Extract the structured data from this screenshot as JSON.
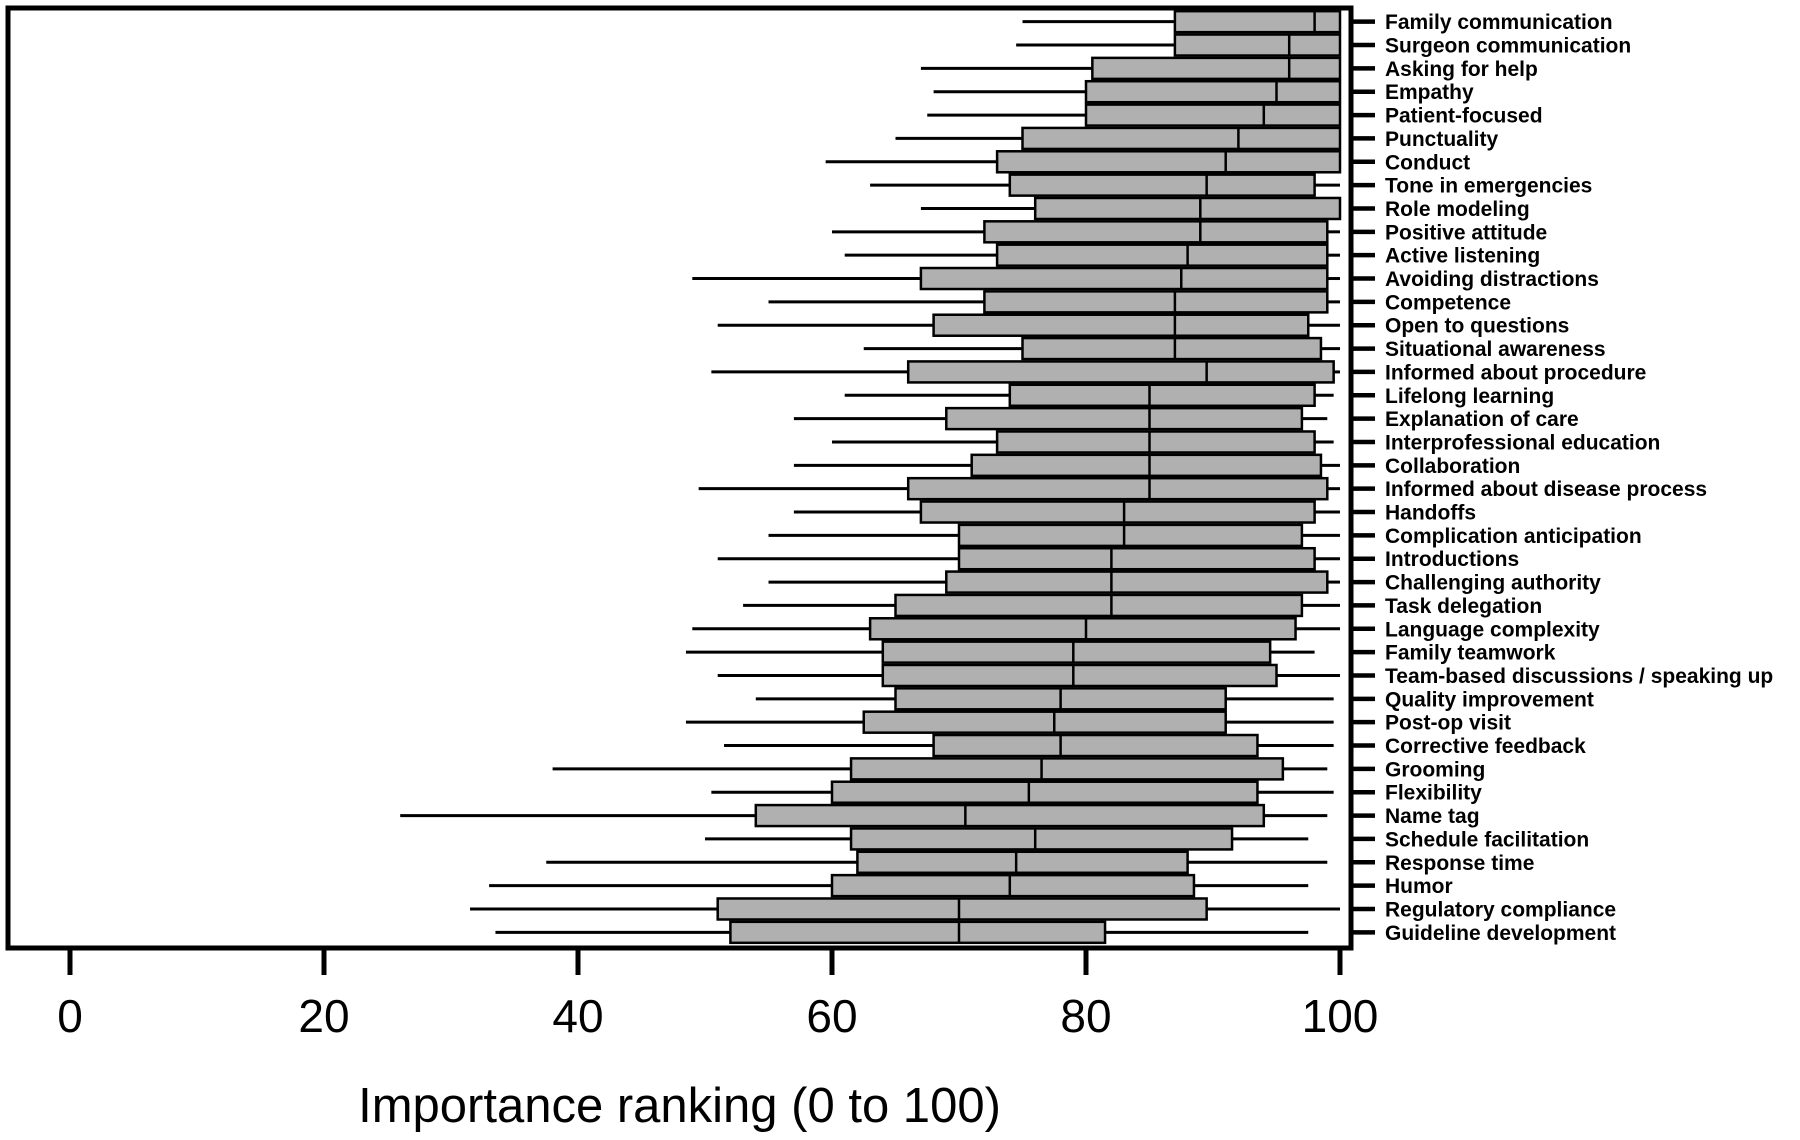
{
  "chart_data": {
    "type": "boxplot",
    "orientation": "horizontal",
    "title": "",
    "xlabel": "Importance ranking (0 to 100)",
    "xlim": [
      0,
      100
    ],
    "x_ticks": [
      0,
      20,
      40,
      60,
      80,
      100
    ],
    "grid": false,
    "legend": false,
    "background_color": "#ffffff",
    "box_fill_color": "#b0b0b0",
    "line_color": "#000000",
    "categories": [
      "Family communication",
      "Surgeon communication",
      "Asking for help",
      "Empathy",
      "Patient-focused",
      "Punctuality",
      "Conduct",
      "Tone in emergencies",
      "Role modeling",
      "Positive attitude",
      "Active listening",
      "Avoiding distractions",
      "Competence",
      "Open to questions",
      "Situational awareness",
      "Informed about procedure",
      "Lifelong learning",
      "Explanation of care",
      "Interprofessional education",
      "Collaboration",
      "Informed about disease process",
      "Handoffs",
      "Complication anticipation",
      "Introductions",
      "Challenging authority",
      "Task delegation",
      "Language complexity",
      "Family teamwork",
      "Team-based discussions / speaking up",
      "Quality improvement",
      "Post-op visit",
      "Corrective feedback",
      "Grooming",
      "Flexibility",
      "Name tag",
      "Schedule facilitation",
      "Response time",
      "Humor",
      "Regulatory compliance",
      "Guideline development"
    ],
    "boxes": [
      {
        "label": "Family communication",
        "whisker_low": 75,
        "q1": 87,
        "median": 98,
        "q3": 100,
        "whisker_high": 100
      },
      {
        "label": "Surgeon communication",
        "whisker_low": 74.5,
        "q1": 87,
        "median": 96,
        "q3": 100,
        "whisker_high": 100
      },
      {
        "label": "Asking for help",
        "whisker_low": 67,
        "q1": 80.5,
        "median": 96,
        "q3": 100,
        "whisker_high": 100
      },
      {
        "label": "Empathy",
        "whisker_low": 68,
        "q1": 80,
        "median": 95,
        "q3": 100,
        "whisker_high": 100
      },
      {
        "label": "Patient-focused",
        "whisker_low": 67.5,
        "q1": 80,
        "median": 94,
        "q3": 100,
        "whisker_high": 100
      },
      {
        "label": "Punctuality",
        "whisker_low": 65,
        "q1": 75,
        "median": 92,
        "q3": 100,
        "whisker_high": 100
      },
      {
        "label": "Conduct",
        "whisker_low": 59.5,
        "q1": 73,
        "median": 91,
        "q3": 100,
        "whisker_high": 100
      },
      {
        "label": "Tone in emergencies",
        "whisker_low": 63,
        "q1": 74,
        "median": 89.5,
        "q3": 98,
        "whisker_high": 100
      },
      {
        "label": "Role modeling",
        "whisker_low": 67,
        "q1": 76,
        "median": 89,
        "q3": 100,
        "whisker_high": 100
      },
      {
        "label": "Positive attitude",
        "whisker_low": 60,
        "q1": 72,
        "median": 89,
        "q3": 99,
        "whisker_high": 100
      },
      {
        "label": "Active listening",
        "whisker_low": 61,
        "q1": 73,
        "median": 88,
        "q3": 99,
        "whisker_high": 100
      },
      {
        "label": "Avoiding distractions",
        "whisker_low": 49,
        "q1": 67,
        "median": 87.5,
        "q3": 99,
        "whisker_high": 100
      },
      {
        "label": "Competence",
        "whisker_low": 55,
        "q1": 72,
        "median": 87,
        "q3": 99,
        "whisker_high": 100
      },
      {
        "label": "Open to questions",
        "whisker_low": 51,
        "q1": 68,
        "median": 87,
        "q3": 97.5,
        "whisker_high": 100
      },
      {
        "label": "Situational awareness",
        "whisker_low": 62.5,
        "q1": 75,
        "median": 87,
        "q3": 98.5,
        "whisker_high": 100
      },
      {
        "label": "Informed about procedure",
        "whisker_low": 50.5,
        "q1": 66,
        "median": 89.5,
        "q3": 99.5,
        "whisker_high": 100
      },
      {
        "label": "Lifelong learning",
        "whisker_low": 61,
        "q1": 74,
        "median": 85,
        "q3": 98,
        "whisker_high": 99.5
      },
      {
        "label": "Explanation of care",
        "whisker_low": 57,
        "q1": 69,
        "median": 85,
        "q3": 97,
        "whisker_high": 99
      },
      {
        "label": "Interprofessional education",
        "whisker_low": 60,
        "q1": 73,
        "median": 85,
        "q3": 98,
        "whisker_high": 99.5
      },
      {
        "label": "Collaboration",
        "whisker_low": 57,
        "q1": 71,
        "median": 85,
        "q3": 98.5,
        "whisker_high": 100
      },
      {
        "label": "Informed about disease process",
        "whisker_low": 49.5,
        "q1": 66,
        "median": 85,
        "q3": 99,
        "whisker_high": 100
      },
      {
        "label": "Handoffs",
        "whisker_low": 57,
        "q1": 67,
        "median": 83,
        "q3": 98,
        "whisker_high": 100
      },
      {
        "label": "Complication anticipation",
        "whisker_low": 55,
        "q1": 70,
        "median": 83,
        "q3": 97,
        "whisker_high": 100
      },
      {
        "label": "Introductions",
        "whisker_low": 51,
        "q1": 70,
        "median": 82,
        "q3": 98,
        "whisker_high": 100
      },
      {
        "label": "Challenging authority",
        "whisker_low": 55,
        "q1": 69,
        "median": 82,
        "q3": 99,
        "whisker_high": 100
      },
      {
        "label": "Task delegation",
        "whisker_low": 53,
        "q1": 65,
        "median": 82,
        "q3": 97,
        "whisker_high": 100
      },
      {
        "label": "Language complexity",
        "whisker_low": 49,
        "q1": 63,
        "median": 80,
        "q3": 96.5,
        "whisker_high": 100
      },
      {
        "label": "Family teamwork",
        "whisker_low": 48.5,
        "q1": 64,
        "median": 79,
        "q3": 94.5,
        "whisker_high": 98
      },
      {
        "label": "Team-based discussions / speaking up",
        "whisker_low": 51,
        "q1": 64,
        "median": 79,
        "q3": 95,
        "whisker_high": 100
      },
      {
        "label": "Quality improvement",
        "whisker_low": 54,
        "q1": 65,
        "median": 78,
        "q3": 91,
        "whisker_high": 99.5
      },
      {
        "label": "Post-op visit",
        "whisker_low": 48.5,
        "q1": 62.5,
        "median": 77.5,
        "q3": 91,
        "whisker_high": 99.5
      },
      {
        "label": "Corrective feedback",
        "whisker_low": 51.5,
        "q1": 68,
        "median": 78,
        "q3": 93.5,
        "whisker_high": 99.5
      },
      {
        "label": "Grooming",
        "whisker_low": 38,
        "q1": 61.5,
        "median": 76.5,
        "q3": 95.5,
        "whisker_high": 99
      },
      {
        "label": "Flexibility",
        "whisker_low": 50.5,
        "q1": 60,
        "median": 75.5,
        "q3": 93.5,
        "whisker_high": 99.5
      },
      {
        "label": "Name tag",
        "whisker_low": 26,
        "q1": 54,
        "median": 70.5,
        "q3": 94,
        "whisker_high": 99
      },
      {
        "label": "Schedule facilitation",
        "whisker_low": 50,
        "q1": 61.5,
        "median": 76,
        "q3": 91.5,
        "whisker_high": 97.5
      },
      {
        "label": "Response time",
        "whisker_low": 37.5,
        "q1": 62,
        "median": 74.5,
        "q3": 88,
        "whisker_high": 99
      },
      {
        "label": "Humor",
        "whisker_low": 33,
        "q1": 60,
        "median": 74,
        "q3": 88.5,
        "whisker_high": 97.5
      },
      {
        "label": "Regulatory compliance",
        "whisker_low": 31.5,
        "q1": 51,
        "median": 70,
        "q3": 89.5,
        "whisker_high": 100
      },
      {
        "label": "Guideline development",
        "whisker_low": 33.5,
        "q1": 52,
        "median": 70,
        "q3": 81.5,
        "whisker_high": 97.5
      }
    ]
  }
}
